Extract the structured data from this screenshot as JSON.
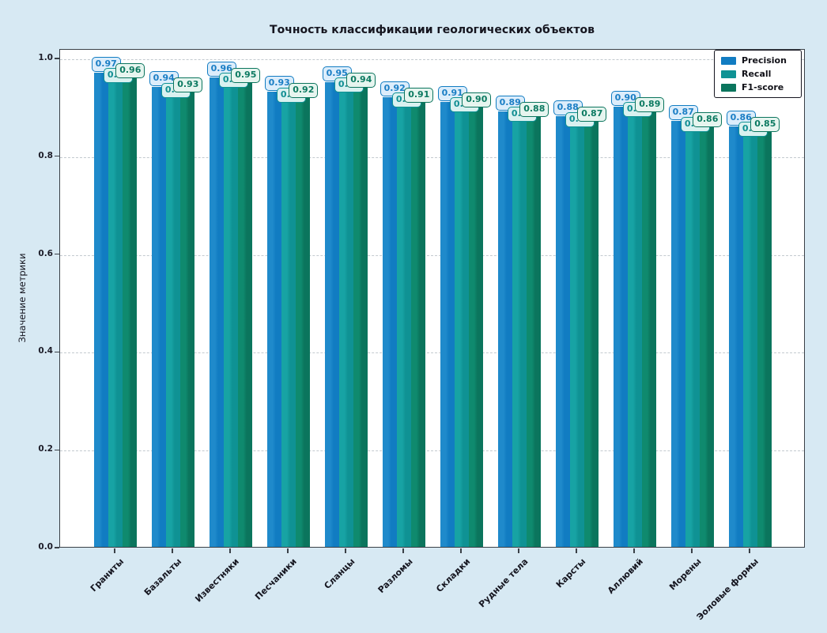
{
  "figure": {
    "background_color": "#d7e9f3",
    "plot_background_color": "#ffffff",
    "spine_color": "#3a4047",
    "grid_color": "#c3cacf",
    "text_color": "#15151f"
  },
  "chart_data": {
    "type": "bar",
    "title": "Точность классификации геологических объектов",
    "xlabel": "",
    "ylabel": "Значение метрики",
    "ylim": [
      0.0,
      1.0
    ],
    "yticks": [
      "0.0",
      "0.2",
      "0.4",
      "0.6",
      "0.8",
      "1.0"
    ],
    "grid": "dashed-horizontal",
    "legend_position": "upper-right",
    "categories": [
      "Граниты",
      "Базальты",
      "Известняки",
      "Песчаники",
      "Сланцы",
      "Разломы",
      "Складки",
      "Рудные тела",
      "Карсты",
      "Аллювий",
      "Морены",
      "Эоловые формы"
    ],
    "series": [
      {
        "name": "Precision",
        "color": "#117cc2",
        "color_light": "#1f8acb",
        "label_bg": "#dcedfb",
        "label_text_color": "#1b7ec5",
        "values": [
          0.97,
          0.94,
          0.96,
          0.93,
          0.95,
          0.92,
          0.91,
          0.89,
          0.88,
          0.9,
          0.87,
          0.86
        ]
      },
      {
        "name": "Recall",
        "color": "#0f9294",
        "color_light": "#17a3a4",
        "label_bg": "#d9f1f0",
        "label_text_color": "#108e92",
        "values": [
          0.95,
          0.92,
          0.94,
          0.91,
          0.93,
          0.9,
          0.89,
          0.87,
          0.86,
          0.88,
          0.85,
          0.84
        ]
      },
      {
        "name": "F1-score",
        "color": "#0b755d",
        "color_light": "#0f8a6e",
        "label_bg": "#e6f5ef",
        "label_text_color": "#0c7a61",
        "values": [
          0.96,
          0.93,
          0.95,
          0.92,
          0.94,
          0.91,
          0.9,
          0.88,
          0.87,
          0.89,
          0.86,
          0.85
        ]
      }
    ]
  }
}
